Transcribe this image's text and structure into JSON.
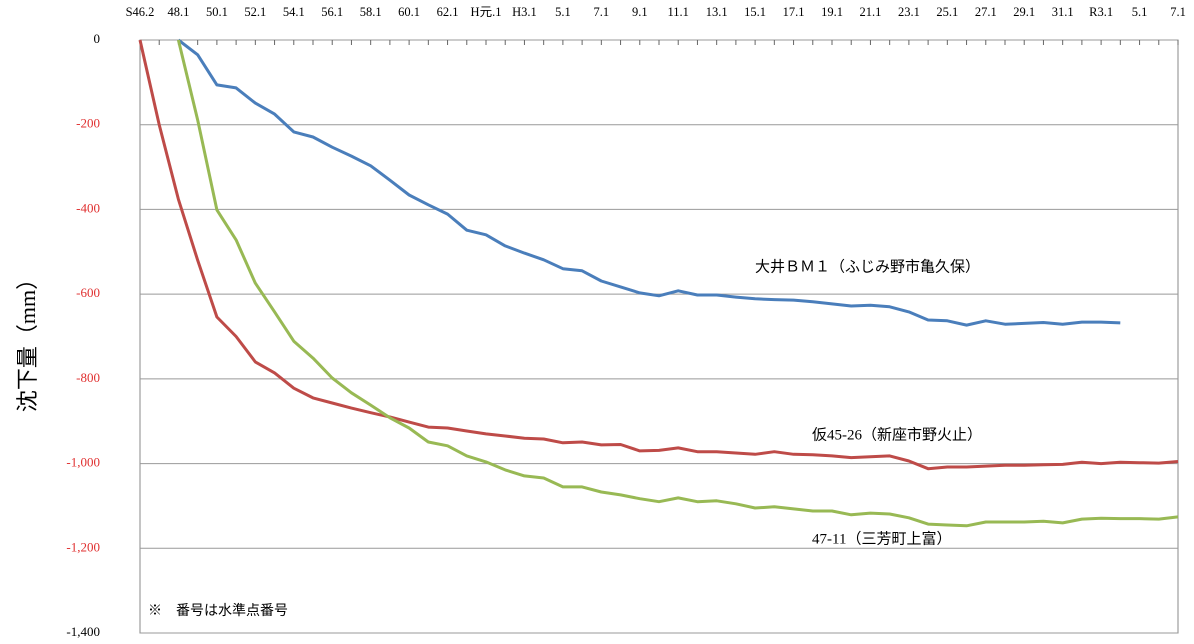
{
  "chart_data": {
    "type": "line",
    "ylabel": "沈下量（mm）",
    "categories": [
      "S46.2",
      null,
      "48.1",
      null,
      "50.1",
      null,
      "52.1",
      null,
      "54.1",
      null,
      "56.1",
      null,
      "58.1",
      null,
      "60.1",
      null,
      "62.1",
      null,
      "H元.1",
      null,
      "H3.1",
      null,
      "5.1",
      null,
      "7.1",
      null,
      "9.1",
      null,
      "11.1",
      null,
      "13.1",
      null,
      "15.1",
      null,
      "17.1",
      null,
      "19.1",
      null,
      "21.1",
      null,
      "23.1",
      null,
      "25.1",
      null,
      "27.1",
      null,
      "29.1",
      null,
      "31.1",
      null,
      "R3.1",
      null,
      "5.1",
      null,
      "7.1"
    ],
    "series": [
      {
        "name": "大井ＢＭ１（ふじみ野市亀久保）",
        "color": "#4a7ebb",
        "values": [
          null,
          null,
          0,
          -35,
          -106,
          -113,
          -149,
          -175,
          -217,
          -229,
          -253,
          -274,
          -297,
          -331,
          -366,
          -389,
          -411,
          -449,
          -460,
          -486,
          -503,
          -519,
          -540,
          -545,
          -569,
          -583,
          -597,
          -604,
          -592,
          -602,
          -602,
          -607,
          -611,
          -613,
          -614,
          -618,
          -623,
          -628,
          -626,
          -630,
          -642,
          -661,
          -663,
          -673,
          -663,
          -671,
          -669,
          -667,
          -671,
          -666,
          -666,
          -668,
          null,
          null,
          null
        ]
      },
      {
        "name": "仮45-26（新座市野火止）",
        "color": "#be4b48",
        "values": [
          0,
          -200,
          -376,
          -520,
          -654,
          -700,
          -760,
          -786,
          -822,
          -845,
          -857,
          -869,
          -880,
          -890,
          -902,
          -914,
          -916,
          -923,
          -930,
          -935,
          -940,
          -942,
          -951,
          -949,
          -956,
          -955,
          -970,
          -969,
          -963,
          -972,
          -972,
          -975,
          -978,
          -972,
          -978,
          -979,
          -982,
          -986,
          -984,
          -982,
          -994,
          -1012,
          -1008,
          -1008,
          -1006,
          -1004,
          -1004,
          -1003,
          -1002,
          -997,
          -1000,
          -997,
          -998,
          -999,
          -995
        ]
      },
      {
        "name": "47-11（三芳町上富）",
        "color": "#98b954",
        "values": [
          null,
          null,
          0,
          -189,
          -401,
          -472,
          -574,
          -642,
          -711,
          -751,
          -798,
          -833,
          -862,
          -892,
          -916,
          -949,
          -958,
          -982,
          -996,
          -1015,
          -1029,
          -1034,
          -1055,
          -1055,
          -1067,
          -1074,
          -1083,
          -1090,
          -1081,
          -1090,
          -1088,
          -1095,
          -1105,
          -1102,
          -1107,
          -1112,
          -1112,
          -1121,
          -1117,
          -1119,
          -1128,
          -1143,
          -1145,
          -1147,
          -1138,
          -1138,
          -1138,
          -1136,
          -1140,
          -1131,
          -1129,
          -1130,
          -1130,
          -1131,
          -1126
        ]
      }
    ],
    "ylim": [
      -1400,
      0
    ],
    "yticks": [
      0,
      {
        "value": -200,
        "label": "-200"
      },
      {
        "value": -400,
        "label": "-400"
      },
      {
        "value": -600,
        "label": "-600"
      },
      {
        "value": -800,
        "label": "-800"
      },
      {
        "value": -1000,
        "label": "-1,000"
      },
      {
        "value": -1200,
        "label": "-1,200"
      },
      {
        "value": -1400,
        "label": "-1,400"
      }
    ],
    "ytick_label_colors": [
      "#000000",
      "#e03030",
      "#e03030",
      "#e03030",
      "#e03030",
      "#e03030",
      "#e03030",
      "#000000"
    ],
    "grid": true,
    "note": "※　番号は水準点番号"
  }
}
